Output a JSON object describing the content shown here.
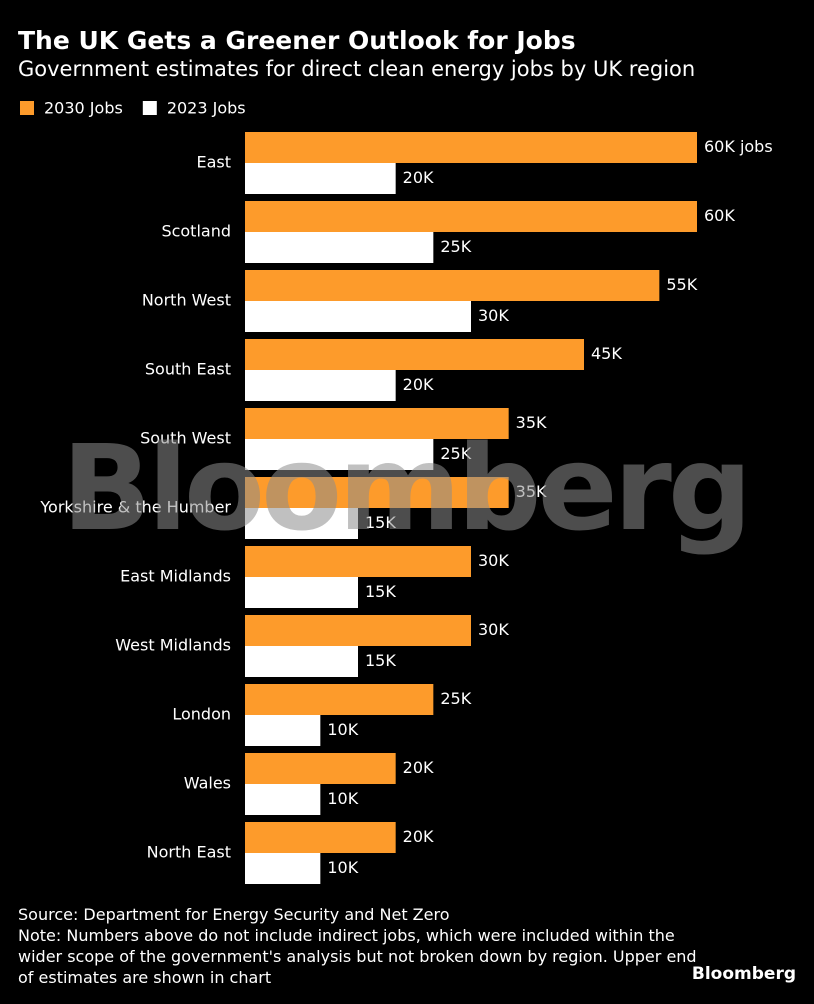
{
  "chart_data": {
    "type": "hbar",
    "title": "The UK Gets a Greener Outlook for Jobs",
    "subtitle": "Government estimates for direct clean energy jobs by UK region",
    "categories": [
      "East",
      "Scotland",
      "North West",
      "South East",
      "South West",
      "Yorkshire & the Humber",
      "East Midlands",
      "West Midlands",
      "London",
      "Wales",
      "North East"
    ],
    "series": [
      {
        "name": "2030 Jobs",
        "color": "#fd9b2b",
        "values": [
          60000,
          60000,
          55000,
          45000,
          35000,
          35000,
          30000,
          30000,
          25000,
          20000,
          20000
        ],
        "value_labels": [
          "60K jobs",
          "60K",
          "55K",
          "45K",
          "35K",
          "35K",
          "30K",
          "30K",
          "25K",
          "20K",
          "20K"
        ]
      },
      {
        "name": "2023 Jobs",
        "color": "#ffffff",
        "values": [
          20000,
          25000,
          30000,
          20000,
          25000,
          15000,
          15000,
          15000,
          10000,
          10000,
          10000
        ],
        "value_labels": [
          "20K",
          "25K",
          "30K",
          "20K",
          "25K",
          "15K",
          "15K",
          "15K",
          "10K",
          "10K",
          "10K"
        ]
      }
    ],
    "source": "Source: Department for Energy Security and Net Zero",
    "note": "Note: Numbers above do not include indirect jobs, which were included within the wider scope of the government's analysis but not broken down by region. Upper end of estimates are shown in chart",
    "watermark": "Bloomberg",
    "logo": "Bloomberg"
  }
}
